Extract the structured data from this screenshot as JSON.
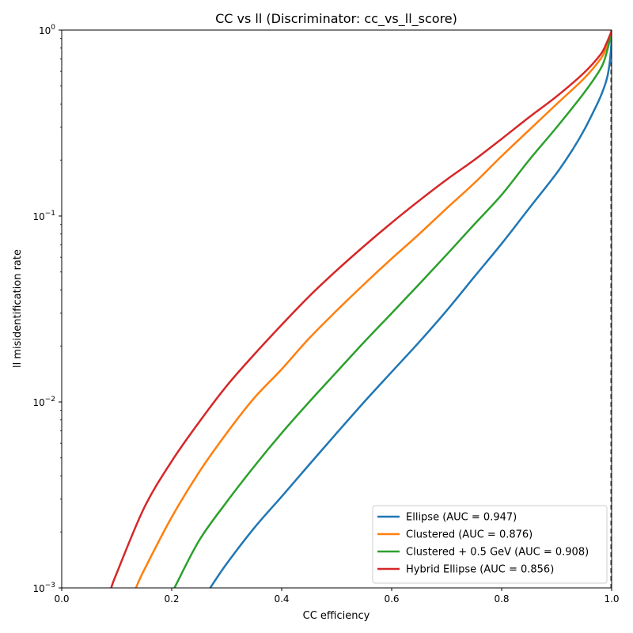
{
  "chart_data": {
    "type": "line",
    "title": "CC vs ll (Discriminator: cc_vs_ll_score)",
    "xlabel": "CC efficiency",
    "ylabel": "ll misidentification rate",
    "xlim": [
      0.0,
      1.0
    ],
    "ylim": [
      0.001,
      1.0
    ],
    "yscale": "log",
    "grid": false,
    "legend_position": "lower-right",
    "x_ticks": [
      {
        "value": 0.0,
        "label": "0.0"
      },
      {
        "value": 0.2,
        "label": "0.2"
      },
      {
        "value": 0.4,
        "label": "0.4"
      },
      {
        "value": 0.6,
        "label": "0.6"
      },
      {
        "value": 0.8,
        "label": "0.8"
      },
      {
        "value": 1.0,
        "label": "1.0"
      }
    ],
    "y_ticks": [
      {
        "value": 0.001,
        "base": "10",
        "exp": "−3"
      },
      {
        "value": 0.01,
        "base": "10",
        "exp": "−2"
      },
      {
        "value": 0.1,
        "base": "10",
        "exp": "−1"
      },
      {
        "value": 1.0,
        "base": "10",
        "exp": "0"
      }
    ],
    "reference_line": {
      "x": 1.0,
      "style": "dashed",
      "color": "#555555"
    },
    "series": [
      {
        "name": "Ellipse (AUC = 0.947)",
        "color": "#1f77b4",
        "x": [
          0.27,
          0.3,
          0.35,
          0.4,
          0.45,
          0.5,
          0.55,
          0.6,
          0.65,
          0.7,
          0.75,
          0.8,
          0.85,
          0.9,
          0.93,
          0.95,
          0.97,
          0.98,
          0.99,
          0.995,
          0.999,
          1.0
        ],
        "y": [
          0.001,
          0.00135,
          0.0021,
          0.0031,
          0.0046,
          0.0068,
          0.01,
          0.0145,
          0.021,
          0.031,
          0.047,
          0.071,
          0.11,
          0.17,
          0.23,
          0.29,
          0.38,
          0.44,
          0.53,
          0.62,
          0.8,
          0.95
        ]
      },
      {
        "name": "Clustered (AUC = 0.876)",
        "color": "#ff7f0e",
        "x": [
          0.135,
          0.15,
          0.2,
          0.25,
          0.3,
          0.35,
          0.4,
          0.45,
          0.5,
          0.55,
          0.6,
          0.65,
          0.7,
          0.75,
          0.8,
          0.85,
          0.9,
          0.95,
          0.98,
          0.99,
          1.0
        ],
        "y": [
          0.001,
          0.00125,
          0.0024,
          0.0042,
          0.0068,
          0.0105,
          0.015,
          0.022,
          0.031,
          0.043,
          0.059,
          0.08,
          0.11,
          0.15,
          0.21,
          0.29,
          0.4,
          0.55,
          0.7,
          0.8,
          0.98
        ]
      },
      {
        "name": "Clustered + 0.5 GeV (AUC = 0.908)",
        "color": "#2ca02c",
        "x": [
          0.205,
          0.25,
          0.3,
          0.35,
          0.4,
          0.45,
          0.5,
          0.55,
          0.6,
          0.65,
          0.7,
          0.75,
          0.8,
          0.85,
          0.9,
          0.95,
          0.98,
          0.99,
          1.0
        ],
        "y": [
          0.001,
          0.0018,
          0.0029,
          0.0045,
          0.0068,
          0.01,
          0.0145,
          0.021,
          0.03,
          0.043,
          0.062,
          0.09,
          0.13,
          0.2,
          0.3,
          0.46,
          0.62,
          0.74,
          0.97
        ]
      },
      {
        "name": "Hybrid Ellipse (AUC = 0.856)",
        "color": "#d62728",
        "x": [
          0.09,
          0.1,
          0.15,
          0.2,
          0.25,
          0.3,
          0.35,
          0.4,
          0.45,
          0.5,
          0.55,
          0.6,
          0.65,
          0.7,
          0.75,
          0.8,
          0.85,
          0.9,
          0.95,
          0.98,
          0.99,
          1.0
        ],
        "y": [
          0.001,
          0.0012,
          0.0027,
          0.0048,
          0.0078,
          0.0122,
          0.018,
          0.026,
          0.037,
          0.051,
          0.069,
          0.092,
          0.121,
          0.157,
          0.2,
          0.26,
          0.34,
          0.44,
          0.59,
          0.74,
          0.84,
          0.99
        ]
      }
    ]
  }
}
